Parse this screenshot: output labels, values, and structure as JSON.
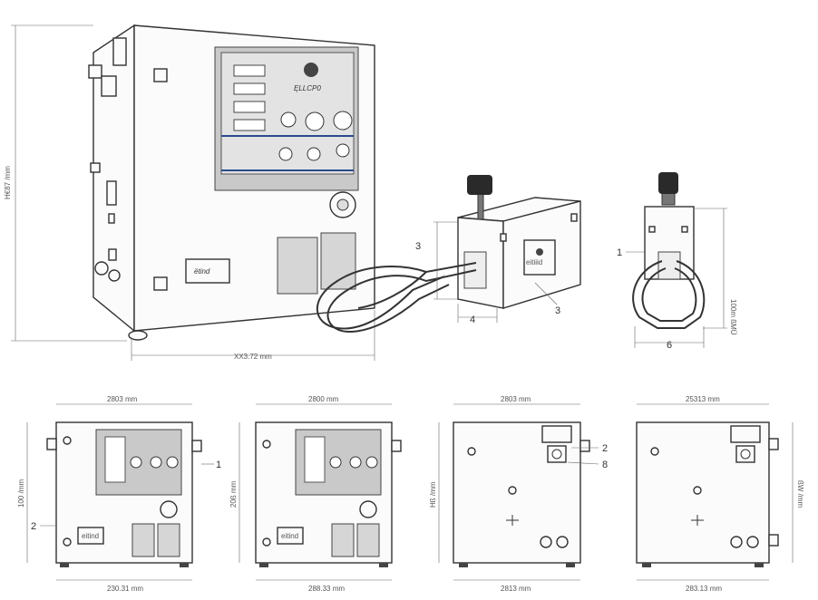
{
  "isometric": {
    "height_dim": "H€87 /mm",
    "width_dim": "XX3.72 mm",
    "brand": "ëtind",
    "panel_brand": "ĘLLCP0"
  },
  "coil_unit": {
    "callout_height": "3",
    "callout_body": "3",
    "callout_depth": "4",
    "brand": "eitiiid"
  },
  "side_view": {
    "callout_left": "1",
    "height_dim": "100m ßMÜ",
    "width_dim": "6"
  },
  "views": [
    {
      "top_dim": "2803 mm",
      "side_dim": "100 /mm",
      "bottom_dim": "230.31 mm",
      "callout_right": "1",
      "callout_left": "2",
      "brand": "eitind"
    },
    {
      "top_dim": "2800 mm",
      "side_dim": "20ß mm",
      "bottom_dim": "288.33 mm",
      "brand": "eitind"
    },
    {
      "top_dim": "2803 mm",
      "side_dim": "Hß /mm",
      "bottom_dim": "2813 mm",
      "callout_top": "2",
      "callout_bottom": "8"
    },
    {
      "top_dim": "25313 mm",
      "side_dim": "ßW /mm",
      "bottom_dim": "283.13 mm"
    }
  ],
  "colors": {
    "line": "#333333",
    "panel": "#c9c9c9",
    "accent": "#2b4a8c"
  }
}
